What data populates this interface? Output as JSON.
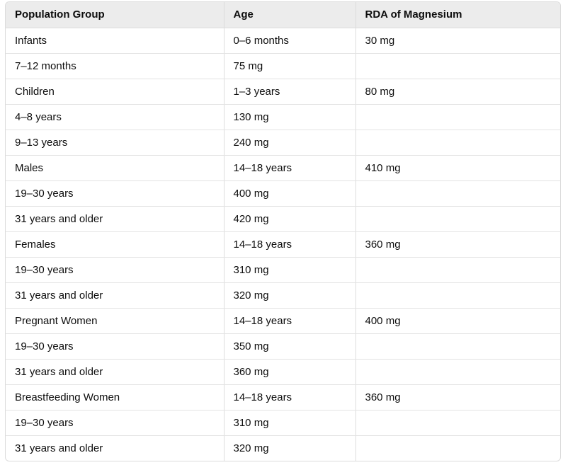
{
  "table": {
    "headers": [
      "Population Group",
      "Age",
      "RDA of Magnesium"
    ],
    "rows": [
      [
        "Infants",
        "0–6 months",
        "30 mg"
      ],
      [
        "7–12 months",
        "75 mg",
        ""
      ],
      [
        "Children",
        "1–3 years",
        "80 mg"
      ],
      [
        "4–8 years",
        "130 mg",
        ""
      ],
      [
        "9–13 years",
        "240 mg",
        ""
      ],
      [
        "Males",
        "14–18 years",
        "410 mg"
      ],
      [
        "19–30 years",
        "400 mg",
        ""
      ],
      [
        "31 years and older",
        "420 mg",
        ""
      ],
      [
        "Females",
        "14–18 years",
        "360 mg"
      ],
      [
        "19–30 years",
        "310 mg",
        ""
      ],
      [
        "31 years and older",
        "320 mg",
        ""
      ],
      [
        "Pregnant Women",
        "14–18 years",
        "400 mg"
      ],
      [
        "19–30 years",
        "350 mg",
        ""
      ],
      [
        "31 years and older",
        "360 mg",
        ""
      ],
      [
        "Breastfeeding Women",
        "14–18 years",
        "360 mg"
      ],
      [
        "19–30 years",
        "310 mg",
        ""
      ],
      [
        "31 years and older",
        "320 mg",
        ""
      ]
    ]
  }
}
